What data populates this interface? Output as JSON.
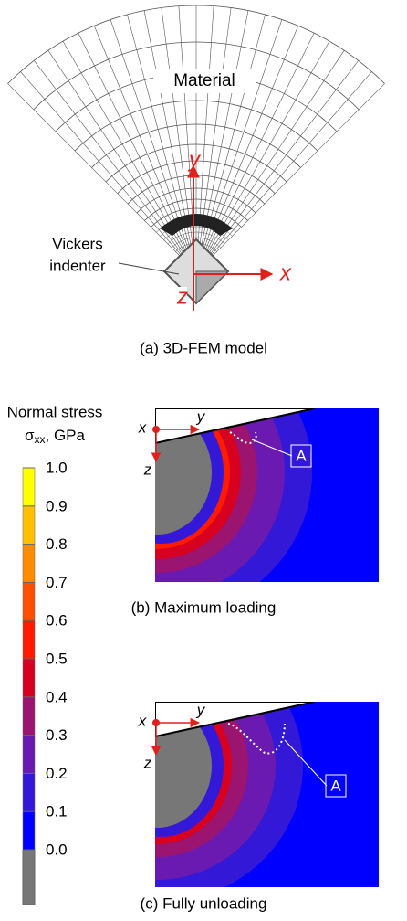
{
  "panel_a": {
    "material": "Material",
    "indenter_line1": "Vickers",
    "indenter_line2": "indenter",
    "axis_x": "x",
    "axis_y": "y",
    "axis_z": "z",
    "caption": "(a)  3D-FEM model"
  },
  "colorbar": {
    "title_line1": "Normal stress",
    "symbol": "σ",
    "subscript": "xx",
    "unit": ", GPa",
    "ticks": [
      {
        "value": 0,
        "label": "0.0"
      },
      0.1,
      0.2,
      0.3,
      0.4,
      0.5,
      0.6,
      0.7,
      0.8,
      0.9,
      {
        "value": 1,
        "label": "1.0"
      }
    ],
    "colors": [
      "#0000ff",
      "#3318d8",
      "#6a1ab0",
      "#9a1470",
      "#d80020",
      "#ff1a00",
      "#ff5000",
      "#ff8c00",
      "#ffc000",
      "#ffff00"
    ],
    "under_color": "#777777"
  },
  "panel_b": {
    "axis_x": "x",
    "axis_y": "y",
    "axis_z": "z",
    "marker": "A",
    "caption": "(b)   Maximum loading"
  },
  "panel_c": {
    "axis_x": "x",
    "axis_y": "y",
    "axis_z": "z",
    "marker": "A",
    "caption": "(c)    Fully unloading"
  }
}
